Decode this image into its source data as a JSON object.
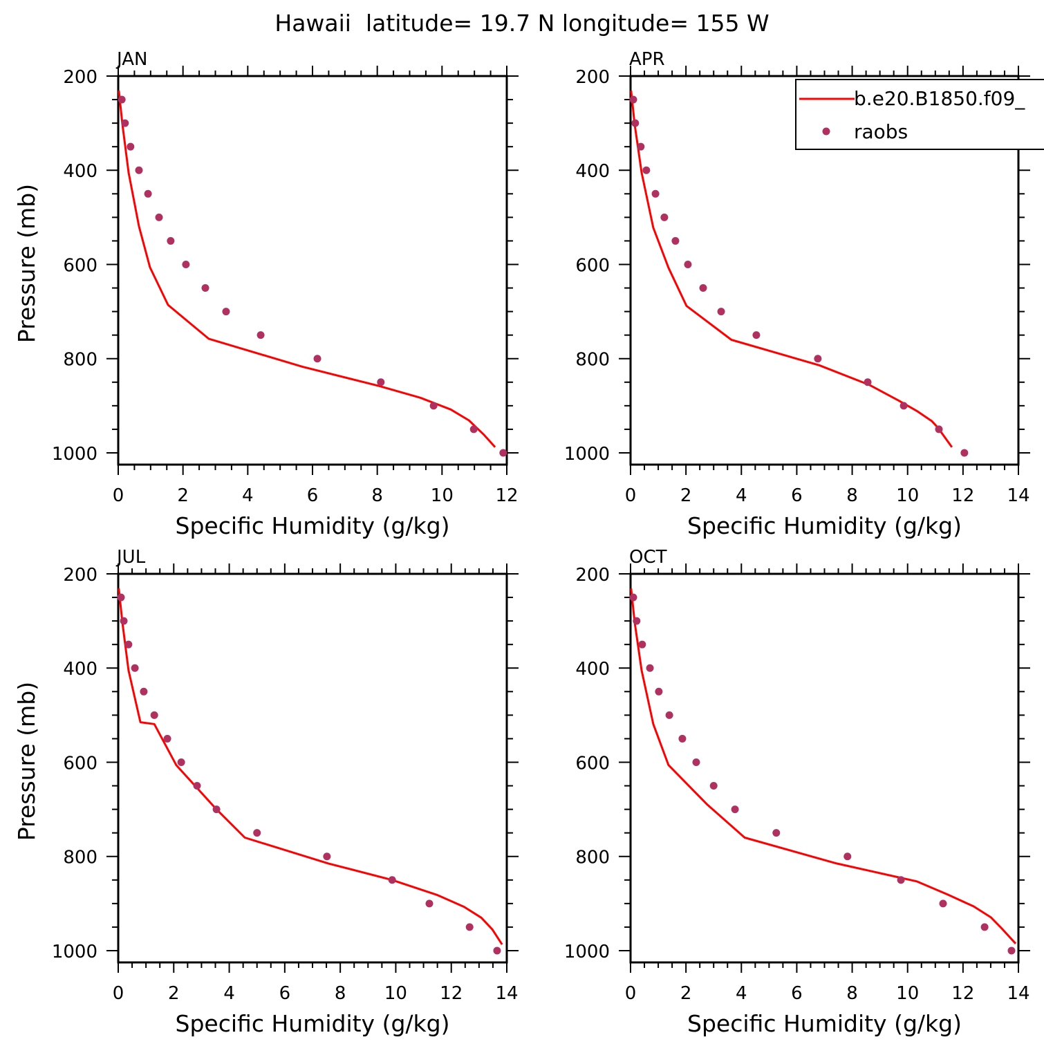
{
  "title": "Hawaii  latitude= 19.7 N longitude= 155 W",
  "colors": {
    "model": "#ff0000",
    "raobs": "#b03060",
    "axes": "#000000"
  },
  "legend": {
    "placement": "top-right of APR panel",
    "entries": [
      {
        "label": "b.e20.B1850.f09_",
        "marker": "line",
        "color": "#ff0000"
      },
      {
        "label": "raobs",
        "marker": "dot",
        "color": "#b03060"
      }
    ]
  },
  "chart_data": [
    {
      "type": "line",
      "title": "JAN",
      "xlabel": "Specific Humidity (g/kg)",
      "ylabel": "Pressure (mb)",
      "xlim": [
        0,
        12
      ],
      "ylim": [
        1025,
        200
      ],
      "y_inverted": true,
      "xticks": [
        0,
        2,
        4,
        6,
        8,
        10,
        12
      ],
      "yticks": [
        200,
        400,
        600,
        800,
        1000
      ],
      "grid": false,
      "series": [
        {
          "name": "b.e20.B1850.f09_",
          "style": "line",
          "x": [
            0.02,
            0.13,
            0.32,
            0.64,
            0.98,
            1.54,
            2.8,
            5.68,
            8.05,
            9.33,
            10.27,
            10.83,
            11.3,
            11.64
          ],
          "y": [
            231,
            303,
            405,
            519,
            606,
            686,
            758,
            817,
            858,
            883,
            908,
            931,
            962,
            988
          ]
        },
        {
          "name": "raobs",
          "style": "scatter",
          "x": [
            0.11,
            0.21,
            0.38,
            0.64,
            0.92,
            1.26,
            1.62,
            2.09,
            2.69,
            3.33,
            4.4,
            6.15,
            8.11,
            9.74,
            10.98,
            11.89
          ],
          "y": [
            250,
            300,
            350,
            400,
            450,
            500,
            550,
            600,
            650,
            700,
            750,
            800,
            850,
            900,
            950,
            1000
          ]
        }
      ]
    },
    {
      "type": "line",
      "title": "APR",
      "xlabel": "Specific Humidity (g/kg)",
      "ylabel": "",
      "xlim": [
        0,
        14
      ],
      "ylim": [
        1025,
        200
      ],
      "y_inverted": true,
      "xticks": [
        0,
        2,
        4,
        6,
        8,
        10,
        12,
        14
      ],
      "yticks": [
        200,
        400,
        600,
        800,
        1000
      ],
      "grid": false,
      "series": [
        {
          "name": "b.e20.B1850.f09_",
          "style": "line",
          "x": [
            0.02,
            0.15,
            0.4,
            0.82,
            1.37,
            2.02,
            3.64,
            6.81,
            8.63,
            9.68,
            10.33,
            10.88,
            11.1,
            11.6
          ],
          "y": [
            231,
            303,
            405,
            522,
            607,
            688,
            760,
            814,
            856,
            889,
            911,
            933,
            947,
            988
          ]
        },
        {
          "name": "raobs",
          "style": "scatter",
          "x": [
            0.1,
            0.17,
            0.37,
            0.57,
            0.9,
            1.22,
            1.62,
            2.07,
            2.62,
            3.27,
            4.54,
            6.76,
            8.56,
            9.86,
            11.13,
            12.05
          ],
          "y": [
            250,
            300,
            350,
            400,
            450,
            500,
            550,
            600,
            650,
            700,
            750,
            800,
            850,
            900,
            950,
            1000
          ]
        }
      ]
    },
    {
      "type": "line",
      "title": "JUL",
      "xlabel": "Specific Humidity (g/kg)",
      "ylabel": "Pressure (mb)",
      "xlim": [
        0,
        14
      ],
      "ylim": [
        1025,
        200
      ],
      "y_inverted": true,
      "xticks": [
        0,
        2,
        4,
        6,
        8,
        10,
        12,
        14
      ],
      "yticks": [
        200,
        400,
        600,
        800,
        1000
      ],
      "grid": false,
      "series": [
        {
          "name": "b.e20.B1850.f09_",
          "style": "line",
          "x": [
            0.02,
            0.15,
            0.37,
            0.8,
            1.3,
            2.09,
            3.54,
            4.56,
            7.57,
            9.87,
            11.5,
            12.46,
            13.08,
            13.48,
            13.83
          ],
          "y": [
            231,
            303,
            405,
            515,
            519,
            606,
            700,
            760,
            815,
            850,
            882,
            907,
            930,
            955,
            987
          ]
        },
        {
          "name": "raobs",
          "style": "scatter",
          "x": [
            0.1,
            0.2,
            0.37,
            0.6,
            0.92,
            1.3,
            1.77,
            2.27,
            2.84,
            3.54,
            5.0,
            7.52,
            9.87,
            11.21,
            12.66,
            13.65
          ],
          "y": [
            250,
            300,
            350,
            400,
            450,
            500,
            550,
            600,
            650,
            700,
            750,
            800,
            850,
            900,
            950,
            1000
          ]
        }
      ]
    },
    {
      "type": "line",
      "title": "OCT",
      "xlabel": "Specific Humidity (g/kg)",
      "ylabel": "",
      "xlim": [
        0,
        14
      ],
      "ylim": [
        1025,
        200
      ],
      "y_inverted": true,
      "xticks": [
        0,
        2,
        4,
        6,
        8,
        10,
        12,
        14
      ],
      "yticks": [
        200,
        400,
        600,
        800,
        1000
      ],
      "grid": false,
      "series": [
        {
          "name": "b.e20.B1850.f09_",
          "style": "line",
          "x": [
            0.02,
            0.15,
            0.4,
            0.82,
            1.37,
            2.77,
            4.12,
            7.44,
            10.33,
            11.45,
            12.38,
            13.0,
            13.4,
            13.9
          ],
          "y": [
            231,
            303,
            405,
            519,
            606,
            690,
            760,
            815,
            853,
            881,
            906,
            929,
            953,
            985
          ]
        },
        {
          "name": "raobs",
          "style": "scatter",
          "x": [
            0.1,
            0.22,
            0.42,
            0.7,
            1.02,
            1.4,
            1.87,
            2.37,
            3.0,
            3.77,
            5.26,
            7.83,
            9.76,
            11.28,
            12.78,
            13.75
          ],
          "y": [
            250,
            300,
            350,
            400,
            450,
            500,
            550,
            600,
            650,
            700,
            750,
            800,
            850,
            900,
            950,
            1000
          ]
        }
      ]
    }
  ]
}
